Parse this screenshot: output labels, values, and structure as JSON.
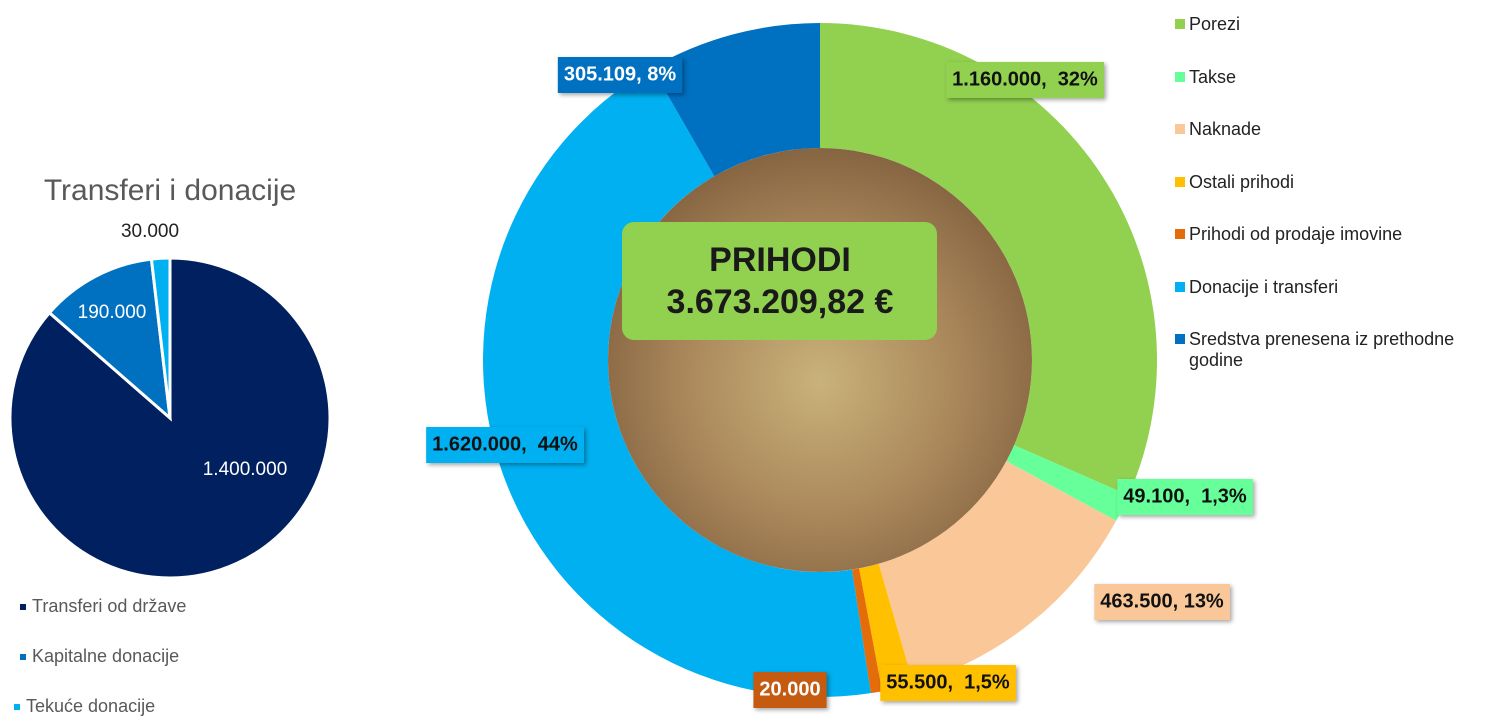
{
  "chart_data": [
    {
      "type": "pie",
      "title": "Transferi i donacije",
      "categories": [
        "Transferi od države",
        "Kapitalne donacije",
        "Tekuće donacije"
      ],
      "values": [
        1400000,
        190000,
        30000
      ],
      "value_labels": [
        "1.400.000",
        "190.000",
        "30.000"
      ],
      "colors": [
        "#002060",
        "#0070c0",
        "#00b0f0"
      ]
    },
    {
      "type": "donut",
      "annotation": [
        "PRIHODI",
        "3.673.209,82 €"
      ],
      "categories": [
        "Porezi",
        "Takse",
        "Naknade",
        "Ostali prihodi",
        "Prihodi od prodaje imovine",
        "Donacije i transferi",
        "Sredstva prenesena iz prethodne godine"
      ],
      "values": [
        1160000,
        49100,
        463500,
        55500,
        20000,
        1620000,
        305109
      ],
      "value_labels": [
        "1.160.000,  32%",
        "49.100,  1,3%",
        "463.500, 13%",
        "55.500,  1,5%",
        "20.000",
        "1.620.000,  44%",
        "305.109, 8%"
      ],
      "colors": [
        "#92d050",
        "#66ff99",
        "#fac898",
        "#ffc000",
        "#e46c0a",
        "#00b0f0",
        "#0070c0"
      ]
    }
  ]
}
